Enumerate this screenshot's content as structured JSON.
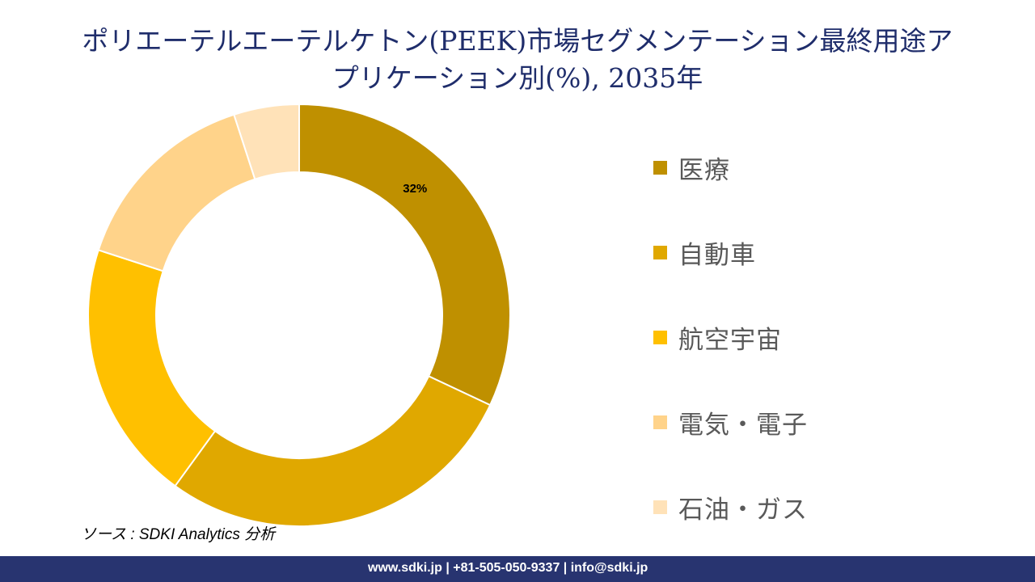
{
  "chart_data": {
    "type": "pie",
    "variant": "donut",
    "title_lines": [
      "ポリエーテルエーテルケトン(PEEK)市場セグメンテーション最終用途ア",
      "プリケーション別(%), 2035年"
    ],
    "categories": [
      "医療",
      "自動車",
      "航空宇宙",
      "電気・電子",
      "石油・ガス"
    ],
    "values": [
      32,
      28,
      20,
      15,
      5
    ],
    "data_labels": [
      "32%",
      null,
      null,
      null,
      null
    ],
    "colors": [
      "#BF9000",
      "#E0A800",
      "#FFC000",
      "#FFD38A",
      "#FFE2B8"
    ],
    "legend_position": "right",
    "unit": "%"
  },
  "source": "ソース : SDKI Analytics 分析",
  "footer": {
    "contact": "www.sdki.jp | +81-505-050-9337 | info@sdki.jp",
    "background": "#283470"
  }
}
